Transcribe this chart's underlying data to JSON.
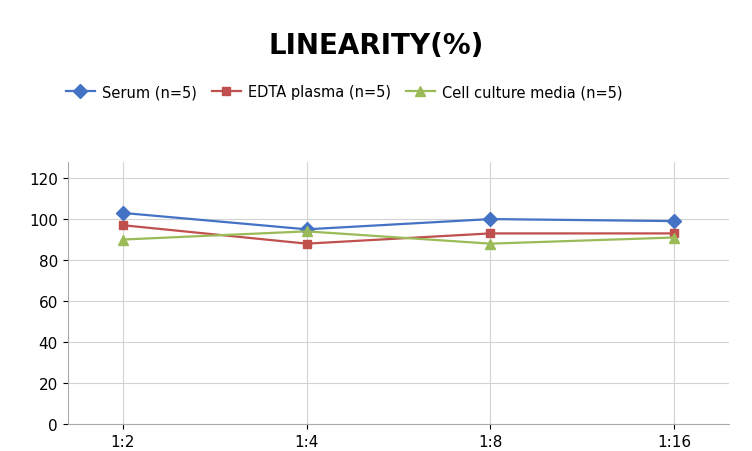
{
  "title": "LINEARITY(%)",
  "title_fontsize": 20,
  "title_fontweight": "bold",
  "x_labels": [
    "1:2",
    "1:4",
    "1:8",
    "1:16"
  ],
  "x_values": [
    0,
    1,
    2,
    3
  ],
  "series": [
    {
      "label": "Serum (n=5)",
      "values": [
        103,
        95,
        100,
        99
      ],
      "color": "#4472C4",
      "marker": "D",
      "markersize": 7,
      "linewidth": 1.6
    },
    {
      "label": "EDTA plasma (n=5)",
      "values": [
        97,
        88,
        93,
        93
      ],
      "color": "#C0504D",
      "marker": "s",
      "markersize": 6,
      "linewidth": 1.6
    },
    {
      "label": "Cell culture media (n=5)",
      "values": [
        90,
        94,
        88,
        91
      ],
      "color": "#9BBB59",
      "marker": "^",
      "markersize": 7,
      "linewidth": 1.6
    }
  ],
  "ylim": [
    0,
    128
  ],
  "yticks": [
    0,
    20,
    40,
    60,
    80,
    100,
    120
  ],
  "grid_color": "#D3D3D3",
  "grid_linewidth": 0.8,
  "background_color": "#FFFFFF",
  "legend_fontsize": 10.5,
  "tick_fontsize": 11,
  "spine_color": "#AAAAAA"
}
